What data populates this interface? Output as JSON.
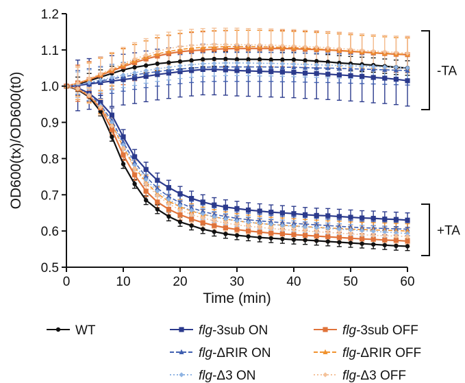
{
  "chart_data": {
    "type": "line",
    "xlabel": "Time (min)",
    "ylabel": "OD600(tx)/OD600(t0)",
    "xlim": [
      0,
      60
    ],
    "ylim": [
      0.5,
      1.2
    ],
    "x_ticks": [
      0,
      10,
      20,
      30,
      40,
      50,
      60
    ],
    "y_ticks": [
      "0.5",
      "0.6",
      "0.7",
      "0.8",
      "0.9",
      "1.0",
      "1.1",
      "1.2"
    ],
    "grid": false,
    "legend_position": "bottom",
    "x": [
      0,
      2,
      4,
      6,
      8,
      10,
      12,
      14,
      16,
      18,
      20,
      22,
      24,
      26,
      28,
      30,
      32,
      34,
      36,
      38,
      40,
      42,
      44,
      46,
      48,
      50,
      52,
      54,
      56,
      58,
      60
    ],
    "groups": [
      {
        "label": "-TA",
        "series": [
          {
            "name": "WT",
            "color": "#111111",
            "marker": "circle",
            "dash": "solid",
            "error": 0.02,
            "values": [
              1.0,
              1.005,
              1.015,
              1.025,
              1.035,
              1.045,
              1.052,
              1.057,
              1.062,
              1.065,
              1.068,
              1.071,
              1.074,
              1.075,
              1.075,
              1.074,
              1.074,
              1.074,
              1.073,
              1.073,
              1.073,
              1.071,
              1.069,
              1.067,
              1.064,
              1.062,
              1.06,
              1.058,
              1.055,
              1.052,
              1.05
            ]
          },
          {
            "name": "flg-3sub ON",
            "color": "#2b3a8c",
            "marker": "square",
            "dash": "solid",
            "error": 0.07,
            "values": [
              1.0,
              1.002,
              1.006,
              1.01,
              1.014,
              1.018,
              1.022,
              1.027,
              1.032,
              1.036,
              1.04,
              1.043,
              1.046,
              1.046,
              1.045,
              1.043,
              1.042,
              1.041,
              1.04,
              1.039,
              1.038,
              1.036,
              1.035,
              1.033,
              1.031,
              1.029,
              1.027,
              1.024,
              1.022,
              1.019,
              1.015
            ]
          },
          {
            "name": "flg-3sub OFF",
            "color": "#e0733a",
            "marker": "square",
            "dash": "solid",
            "error": 0.05,
            "values": [
              1.0,
              1.008,
              1.018,
              1.03,
              1.042,
              1.054,
              1.065,
              1.075,
              1.083,
              1.09,
              1.095,
              1.098,
              1.1,
              1.102,
              1.103,
              1.104,
              1.104,
              1.104,
              1.104,
              1.104,
              1.103,
              1.102,
              1.101,
              1.1,
              1.098,
              1.096,
              1.094,
              1.092,
              1.09,
              1.088,
              1.087
            ]
          },
          {
            "name": "flg-ΔRIR ON",
            "color": "#3f5fb0",
            "marker": "triangle",
            "dash": "dash",
            "error": 0.04,
            "values": [
              1.0,
              1.003,
              1.008,
              1.014,
              1.02,
              1.026,
              1.031,
              1.036,
              1.04,
              1.044,
              1.047,
              1.05,
              1.052,
              1.053,
              1.053,
              1.053,
              1.053,
              1.053,
              1.053,
              1.052,
              1.052,
              1.051,
              1.05,
              1.05,
              1.049,
              1.048,
              1.047,
              1.046,
              1.045,
              1.044,
              1.043
            ]
          },
          {
            "name": "flg-ΔRIR OFF",
            "color": "#f0922e",
            "marker": "triangle",
            "dash": "dash",
            "error": 0.045,
            "values": [
              1.0,
              1.008,
              1.019,
              1.032,
              1.045,
              1.058,
              1.07,
              1.08,
              1.089,
              1.096,
              1.101,
              1.105,
              1.107,
              1.108,
              1.109,
              1.109,
              1.109,
              1.109,
              1.108,
              1.107,
              1.106,
              1.105,
              1.103,
              1.101,
              1.099,
              1.097,
              1.095,
              1.093,
              1.091,
              1.089,
              1.088
            ]
          },
          {
            "name": "flg-Δ3 ON",
            "color": "#8fb4e3",
            "marker": "diamond",
            "dash": "dot",
            "error": 0.035,
            "values": [
              1.0,
              1.004,
              1.01,
              1.017,
              1.024,
              1.031,
              1.037,
              1.043,
              1.048,
              1.052,
              1.056,
              1.059,
              1.062,
              1.063,
              1.064,
              1.064,
              1.064,
              1.063,
              1.063,
              1.062,
              1.061,
              1.06,
              1.059,
              1.058,
              1.057,
              1.056,
              1.055,
              1.054,
              1.053,
              1.052,
              1.05
            ]
          },
          {
            "name": "flg-Δ3 OFF",
            "color": "#f4c29a",
            "marker": "diamond",
            "dash": "dot",
            "error": 0.045,
            "values": [
              1.0,
              1.009,
              1.021,
              1.034,
              1.048,
              1.062,
              1.075,
              1.086,
              1.096,
              1.104,
              1.109,
              1.112,
              1.114,
              1.115,
              1.115,
              1.115,
              1.114,
              1.114,
              1.113,
              1.112,
              1.111,
              1.109,
              1.108,
              1.106,
              1.104,
              1.102,
              1.099,
              1.097,
              1.095,
              1.093,
              1.091
            ]
          }
        ]
      },
      {
        "label": "+TA",
        "series": [
          {
            "name": "WT",
            "color": "#111111",
            "marker": "circle",
            "dash": "solid",
            "error": 0.012,
            "values": [
              1.0,
              0.99,
              0.97,
              0.93,
              0.86,
              0.785,
              0.73,
              0.685,
              0.66,
              0.64,
              0.625,
              0.615,
              0.605,
              0.598,
              0.592,
              0.588,
              0.585,
              0.582,
              0.58,
              0.578,
              0.576,
              0.575,
              0.573,
              0.571,
              0.569,
              0.567,
              0.565,
              0.563,
              0.561,
              0.559,
              0.558
            ]
          },
          {
            "name": "flg-3sub ON",
            "color": "#2b3a8c",
            "marker": "square",
            "dash": "solid",
            "error": 0.02,
            "values": [
              1.0,
              0.995,
              0.98,
              0.955,
              0.92,
              0.86,
              0.805,
              0.77,
              0.74,
              0.72,
              0.703,
              0.69,
              0.68,
              0.672,
              0.666,
              0.662,
              0.658,
              0.655,
              0.652,
              0.65,
              0.648,
              0.645,
              0.643,
              0.642,
              0.64,
              0.638,
              0.636,
              0.635,
              0.633,
              0.632,
              0.63
            ]
          },
          {
            "name": "flg-3sub OFF",
            "color": "#e0733a",
            "marker": "square",
            "dash": "solid",
            "error": 0.015,
            "values": [
              1.0,
              0.992,
              0.973,
              0.94,
              0.88,
              0.81,
              0.755,
              0.71,
              0.68,
              0.66,
              0.645,
              0.633,
              0.623,
              0.615,
              0.609,
              0.604,
              0.6,
              0.597,
              0.594,
              0.592,
              0.59,
              0.588,
              0.586,
              0.584,
              0.582,
              0.58,
              0.578,
              0.577,
              0.575,
              0.574,
              0.572
            ]
          },
          {
            "name": "flg-ΔRIR ON",
            "color": "#3f5fb0",
            "marker": "triangle",
            "dash": "dash",
            "error": 0.018,
            "values": [
              1.0,
              0.994,
              0.977,
              0.948,
              0.905,
              0.845,
              0.79,
              0.75,
              0.718,
              0.695,
              0.678,
              0.664,
              0.654,
              0.646,
              0.64,
              0.635,
              0.631,
              0.628,
              0.625,
              0.623,
              0.621,
              0.619,
              0.617,
              0.615,
              0.613,
              0.611,
              0.609,
              0.608,
              0.607,
              0.606,
              0.605
            ]
          },
          {
            "name": "flg-ΔRIR OFF",
            "color": "#f0922e",
            "marker": "triangle",
            "dash": "dash",
            "error": 0.02,
            "values": [
              1.0,
              0.993,
              0.975,
              0.944,
              0.895,
              0.832,
              0.776,
              0.735,
              0.703,
              0.682,
              0.667,
              0.655,
              0.646,
              0.639,
              0.633,
              0.628,
              0.624,
              0.621,
              0.618,
              0.616,
              0.614,
              0.612,
              0.61,
              0.608,
              0.607,
              0.605,
              0.604,
              0.603,
              0.602,
              0.601,
              0.6
            ]
          },
          {
            "name": "flg-Δ3 ON",
            "color": "#8fb4e3",
            "marker": "diamond",
            "dash": "dot",
            "error": 0.015,
            "values": [
              1.0,
              0.993,
              0.976,
              0.946,
              0.9,
              0.838,
              0.782,
              0.742,
              0.71,
              0.687,
              0.67,
              0.657,
              0.647,
              0.639,
              0.633,
              0.628,
              0.624,
              0.621,
              0.618,
              0.615,
              0.613,
              0.611,
              0.609,
              0.607,
              0.605,
              0.603,
              0.601,
              0.599,
              0.597,
              0.595,
              0.593
            ]
          },
          {
            "name": "flg-Δ3 OFF",
            "color": "#f4c29a",
            "marker": "diamond",
            "dash": "dot",
            "error": 0.022,
            "values": [
              1.0,
              0.993,
              0.974,
              0.942,
              0.89,
              0.828,
              0.772,
              0.73,
              0.698,
              0.675,
              0.658,
              0.645,
              0.636,
              0.628,
              0.622,
              0.617,
              0.613,
              0.61,
              0.607,
              0.604,
              0.602,
              0.6,
              0.598,
              0.596,
              0.594,
              0.592,
              0.59,
              0.588,
              0.587,
              0.586,
              0.585
            ]
          }
        ]
      }
    ],
    "legend": [
      {
        "prefix": "",
        "text": "WT",
        "color": "#111111",
        "marker": "circle",
        "dash": "solid"
      },
      {
        "prefix": "flg",
        "text": "-3sub ON",
        "color": "#2b3a8c",
        "marker": "square",
        "dash": "solid"
      },
      {
        "prefix": "flg",
        "text": "-3sub OFF",
        "color": "#e0733a",
        "marker": "square",
        "dash": "solid"
      },
      {
        "prefix": "flg",
        "text": "-ΔRIR ON",
        "color": "#3f5fb0",
        "marker": "triangle",
        "dash": "dash"
      },
      {
        "prefix": "flg",
        "text": "-ΔRIR OFF",
        "color": "#f0922e",
        "marker": "triangle",
        "dash": "dash"
      },
      {
        "prefix": "flg",
        "text": "-Δ3 ON",
        "color": "#8fb4e3",
        "marker": "diamond",
        "dash": "dot"
      },
      {
        "prefix": "flg",
        "text": "-Δ3 OFF",
        "color": "#f4c29a",
        "marker": "diamond",
        "dash": "dot"
      }
    ]
  }
}
